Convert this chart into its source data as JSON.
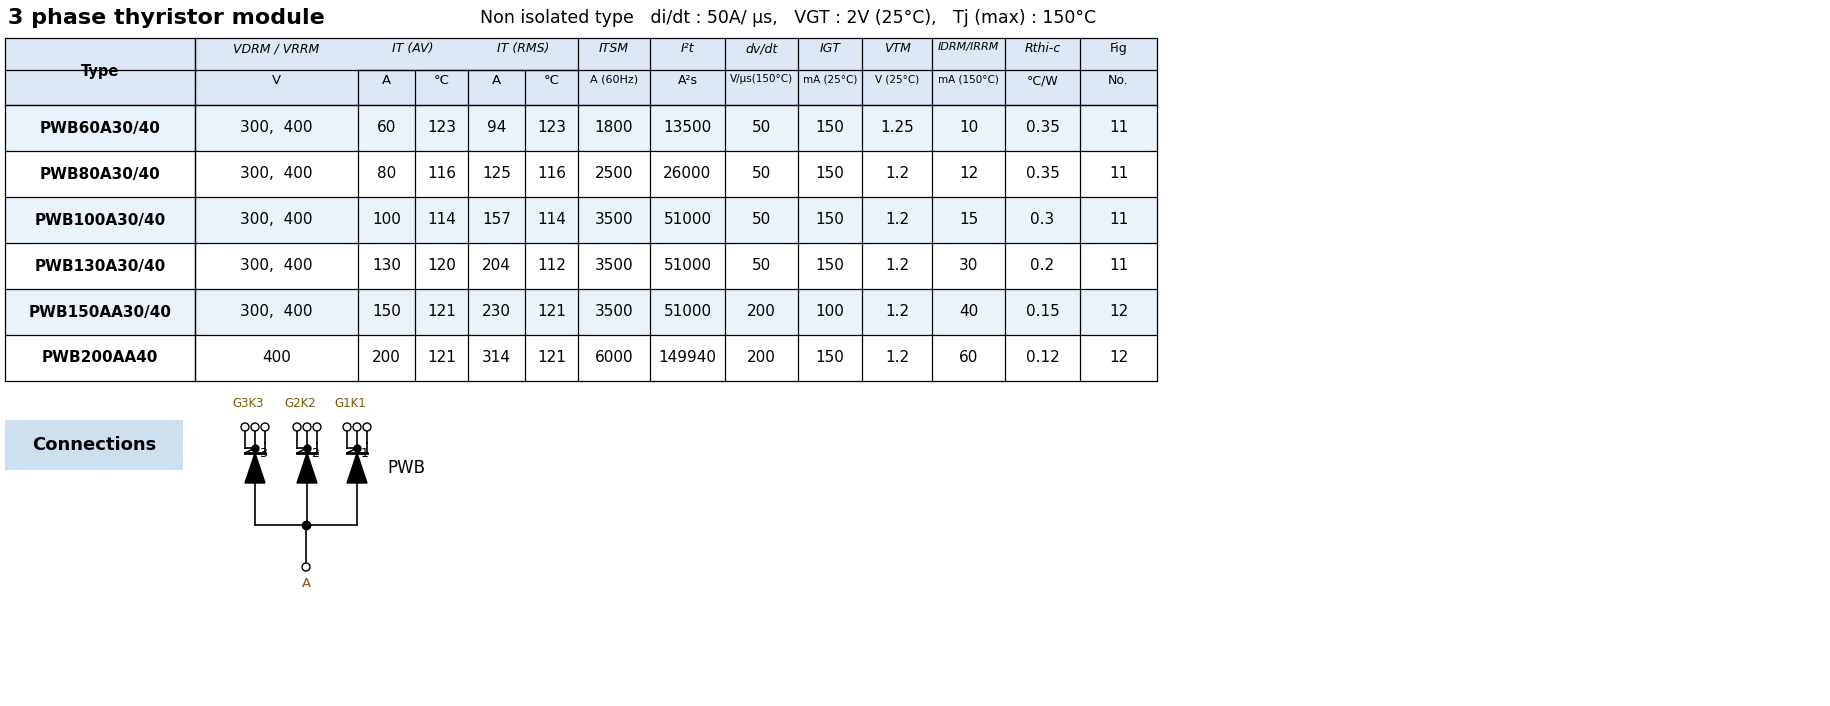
{
  "title": "3 phase thyristor module",
  "header_bg": "#dce8f5",
  "alt_row_bg": "#eaf3fb",
  "connections_bg": "#cce0f0",
  "col_bounds": [
    5,
    195,
    358,
    415,
    468,
    525,
    578,
    650,
    725,
    798,
    862,
    932,
    1005,
    1080,
    1157,
    1228
  ],
  "rows": [
    [
      "PWB60A30/40",
      "300,  400",
      "60",
      "123",
      "94",
      "123",
      "1800",
      "13500",
      "50",
      "150",
      "1.25",
      "10",
      "0.35",
      "11"
    ],
    [
      "PWB80A30/40",
      "300,  400",
      "80",
      "116",
      "125",
      "116",
      "2500",
      "26000",
      "50",
      "150",
      "1.2",
      "12",
      "0.35",
      "11"
    ],
    [
      "PWB100A30/40",
      "300,  400",
      "100",
      "114",
      "157",
      "114",
      "3500",
      "51000",
      "50",
      "150",
      "1.2",
      "15",
      "0.3",
      "11"
    ],
    [
      "PWB130A30/40",
      "300,  400",
      "130",
      "120",
      "204",
      "112",
      "3500",
      "51000",
      "50",
      "150",
      "1.2",
      "30",
      "0.2",
      "11"
    ],
    [
      "PWB150AA30/40",
      "300,  400",
      "150",
      "121",
      "230",
      "121",
      "3500",
      "51000",
      "200",
      "100",
      "1.2",
      "40",
      "0.15",
      "12"
    ],
    [
      "PWB200AA40",
      "400",
      "200",
      "121",
      "314",
      "121",
      "6000",
      "149940",
      "200",
      "150",
      "1.2",
      "60",
      "0.12",
      "12"
    ]
  ]
}
